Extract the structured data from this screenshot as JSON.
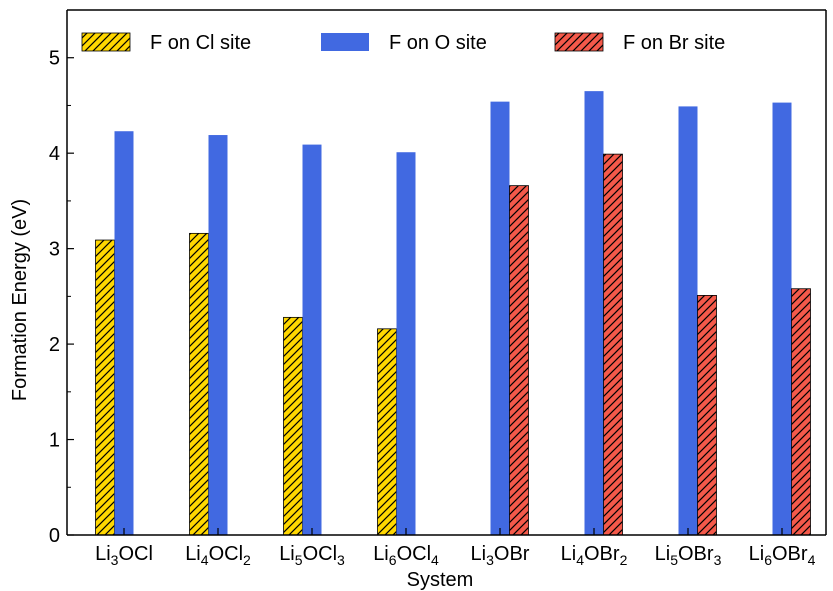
{
  "chart_data": {
    "type": "bar",
    "xlabel": "System",
    "ylabel": "Formation Energy (eV)",
    "ylim": [
      0,
      5.5
    ],
    "yticks": [
      0,
      1,
      2,
      3,
      4,
      5
    ],
    "grid": false,
    "legend_position": "top",
    "categories": [
      {
        "base": "Li",
        "parts": [
          [
            "Li",
            ""
          ],
          [
            "3",
            "sub"
          ],
          [
            "OCl",
            ""
          ]
        ]
      },
      {
        "base": "Li",
        "parts": [
          [
            "Li",
            ""
          ],
          [
            "4",
            "sub"
          ],
          [
            "OCl",
            ""
          ],
          [
            "2",
            "sub"
          ]
        ]
      },
      {
        "base": "Li",
        "parts": [
          [
            "Li",
            ""
          ],
          [
            "5",
            "sub"
          ],
          [
            "OCl",
            ""
          ],
          [
            "3",
            "sub"
          ]
        ]
      },
      {
        "base": "Li",
        "parts": [
          [
            "Li",
            ""
          ],
          [
            "6",
            "sub"
          ],
          [
            "OCl",
            ""
          ],
          [
            "4",
            "sub"
          ]
        ]
      },
      {
        "base": "Li",
        "parts": [
          [
            "Li",
            ""
          ],
          [
            "3",
            "sub"
          ],
          [
            "OBr",
            ""
          ]
        ]
      },
      {
        "base": "Li",
        "parts": [
          [
            "Li",
            ""
          ],
          [
            "4",
            "sub"
          ],
          [
            "OBr",
            ""
          ],
          [
            "2",
            "sub"
          ]
        ]
      },
      {
        "base": "Li",
        "parts": [
          [
            "Li",
            ""
          ],
          [
            "5",
            "sub"
          ],
          [
            "OBr",
            ""
          ],
          [
            "3",
            "sub"
          ]
        ]
      },
      {
        "base": "Li",
        "parts": [
          [
            "Li",
            ""
          ],
          [
            "6",
            "sub"
          ],
          [
            "OBr",
            ""
          ],
          [
            "4",
            "sub"
          ]
        ]
      }
    ],
    "series": [
      {
        "name": "F on Cl site",
        "color": "#ffd700",
        "hatch": true,
        "slot": 0,
        "values": [
          3.09,
          3.16,
          2.28,
          2.16,
          null,
          null,
          null,
          null
        ]
      },
      {
        "name": "F on O site",
        "color": "#4169e1",
        "hatch": false,
        "slot": 1,
        "values": [
          4.23,
          4.19,
          4.09,
          4.01,
          4.54,
          4.65,
          4.49,
          4.53
        ]
      },
      {
        "name": "F on Br site",
        "color": "#f4594a",
        "hatch": true,
        "slot": 2,
        "values": [
          null,
          null,
          null,
          null,
          3.66,
          3.99,
          2.51,
          2.58
        ]
      }
    ]
  }
}
